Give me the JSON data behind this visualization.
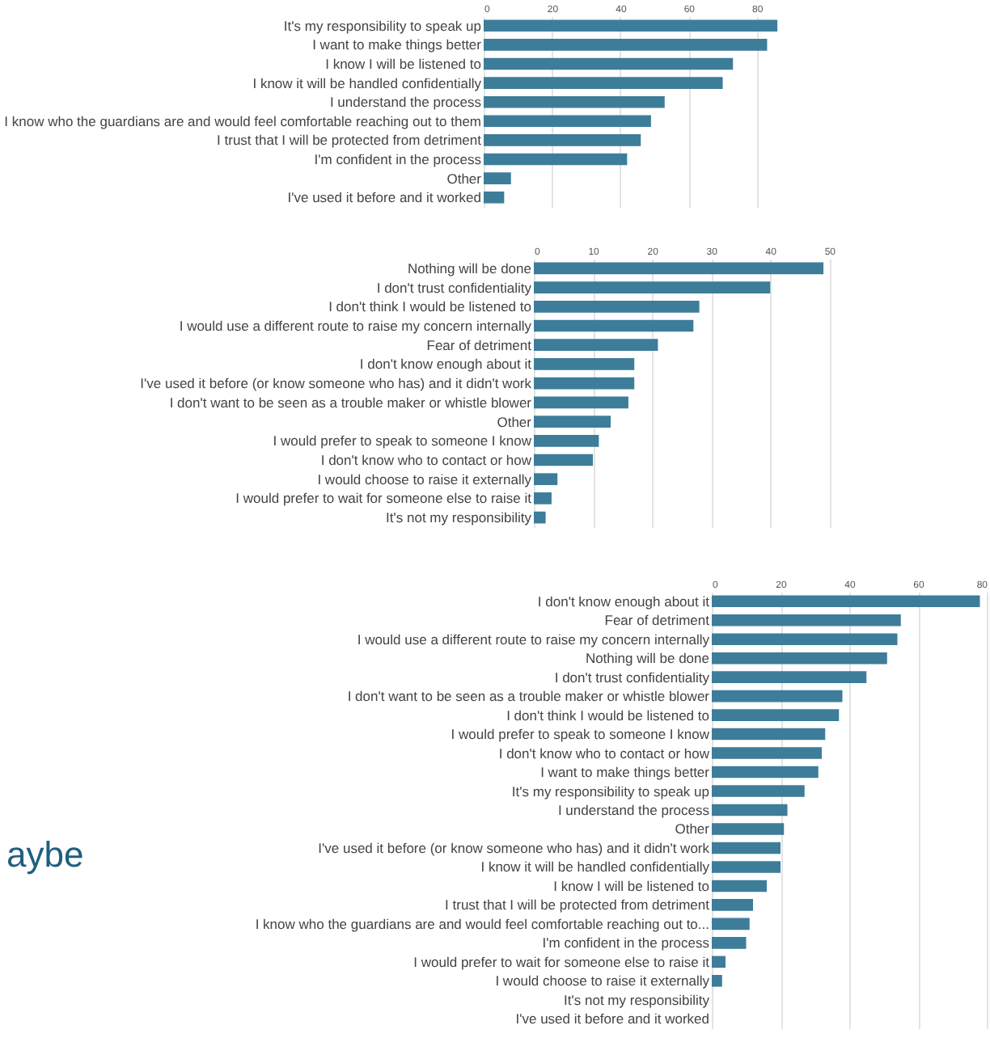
{
  "chart_data": [
    {
      "type": "bar",
      "orientation": "horizontal",
      "color": "#3d7d99",
      "grid": "x",
      "xlim": [
        0,
        90
      ],
      "xticks": [
        0,
        20,
        40,
        60,
        80
      ],
      "categories": [
        "It's my responsibility to speak up",
        "I want to make things better",
        "I know I will be listened to",
        "I know it will be handled confidentially",
        "I understand the process",
        "I know who the guardians are and would feel comfortable reaching out to them",
        "I trust that I will be protected from detriment",
        "I'm confident in the process",
        "Other",
        "I've used it before and it worked"
      ],
      "values": [
        86,
        83,
        73,
        70,
        53,
        49,
        46,
        42,
        8,
        6
      ]
    },
    {
      "type": "bar",
      "orientation": "horizontal",
      "color": "#3d7d99",
      "grid": "x",
      "xlim": [
        0,
        52
      ],
      "xticks": [
        0,
        10,
        20,
        30,
        40,
        50
      ],
      "categories": [
        "Nothing will be done",
        "I don't trust confidentiality",
        "I don't think I would be listened to",
        "I would use a different route to raise my concern internally",
        "Fear of detriment",
        "I don't know enough about it",
        "I've used it before (or know someone who has) and it didn't work",
        "I don't want to be seen as a trouble maker or whistle blower",
        "Other",
        "I would prefer to speak to someone I know",
        "I don't know who to contact or how",
        "I would choose to raise it externally",
        "I would prefer to wait for someone else to raise it",
        "It's not my responsibility"
      ],
      "values": [
        49,
        40,
        28,
        27,
        21,
        17,
        17,
        16,
        13,
        11,
        10,
        4,
        3,
        2
      ]
    },
    {
      "type": "bar",
      "orientation": "horizontal",
      "color": "#3d7d99",
      "grid": "x",
      "xlim": [
        0,
        80
      ],
      "xticks": [
        0,
        20,
        40,
        60,
        80
      ],
      "categories": [
        "I don't know enough about it",
        "Fear of detriment",
        "I would use a different route to raise my concern internally",
        "Nothing will be done",
        "I don't trust confidentiality",
        "I don't want to be seen as a trouble maker or whistle blower",
        "I don't think I would be listened to",
        "I would prefer to speak to someone I know",
        "I don't know who to contact or how",
        "I want to make things better",
        "It's my responsibility to speak up",
        "I understand the process",
        "Other",
        "I've used it before (or know someone who has) and it didn't work",
        "I know it will be handled confidentially",
        "I know I will be listened to",
        "I trust that I will be protected from detriment",
        "I know who the guardians are and would feel comfortable reaching out to...",
        "I'm confident in the process",
        "I would prefer to wait for someone else to raise it",
        "I would choose to raise it externally",
        "It's not my responsibility",
        "I've used it before and it worked"
      ],
      "values": [
        78,
        55,
        54,
        51,
        45,
        38,
        37,
        33,
        32,
        31,
        27,
        22,
        21,
        20,
        20,
        16,
        12,
        11,
        10,
        4,
        3,
        0,
        0
      ],
      "annotations": [
        "aybe"
      ]
    }
  ]
}
